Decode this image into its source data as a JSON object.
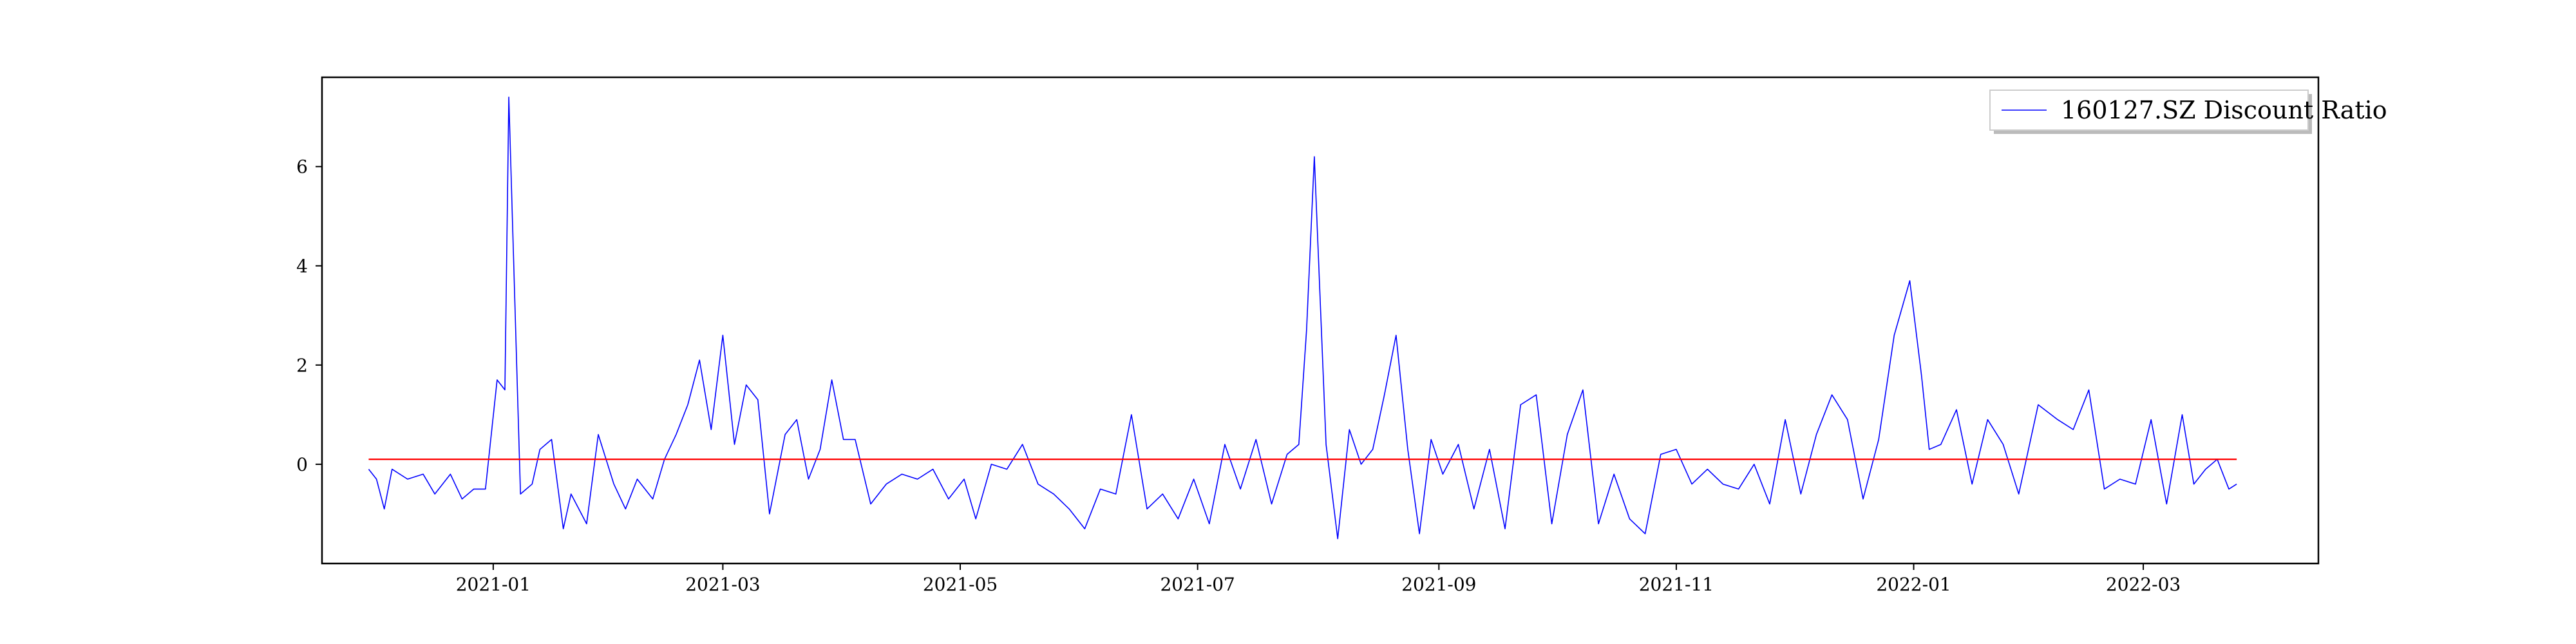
{
  "chart_data": {
    "type": "line",
    "title": "",
    "xlabel": "",
    "ylabel": "",
    "x_ticks": [
      "2021-01",
      "2021-03",
      "2021-05",
      "2021-07",
      "2021-09",
      "2021-11",
      "2022-01",
      "2022-03"
    ],
    "y_ticks": [
      0,
      2,
      4,
      6
    ],
    "xlim": [
      "2020-11-18",
      "2022-04-15"
    ],
    "ylim": [
      -2.0,
      7.8
    ],
    "grid": false,
    "legend": {
      "location": "upper right",
      "entries": [
        "160127.SZ Discount Ratio"
      ]
    },
    "series": [
      {
        "name": "160127.SZ Discount Ratio",
        "color": "#0000ff",
        "x": [
          "2020-11-30",
          "2020-12-02",
          "2020-12-04",
          "2020-12-06",
          "2020-12-10",
          "2020-12-14",
          "2020-12-17",
          "2020-12-21",
          "2020-12-24",
          "2020-12-27",
          "2020-12-30",
          "2021-01-02",
          "2021-01-04",
          "2021-01-05",
          "2021-01-08",
          "2021-01-11",
          "2021-01-13",
          "2021-01-16",
          "2021-01-19",
          "2021-01-21",
          "2021-01-25",
          "2021-01-28",
          "2021-02-01",
          "2021-02-04",
          "2021-02-07",
          "2021-02-11",
          "2021-02-14",
          "2021-02-17",
          "2021-02-20",
          "2021-02-23",
          "2021-02-26",
          "2021-03-01",
          "2021-03-04",
          "2021-03-07",
          "2021-03-10",
          "2021-03-13",
          "2021-03-17",
          "2021-03-20",
          "2021-03-23",
          "2021-03-26",
          "2021-03-29",
          "2021-04-01",
          "2021-04-04",
          "2021-04-08",
          "2021-04-12",
          "2021-04-16",
          "2021-04-20",
          "2021-04-24",
          "2021-04-28",
          "2021-05-02",
          "2021-05-05",
          "2021-05-09",
          "2021-05-13",
          "2021-05-17",
          "2021-05-21",
          "2021-05-25",
          "2021-05-29",
          "2021-06-02",
          "2021-06-06",
          "2021-06-10",
          "2021-06-14",
          "2021-06-18",
          "2021-06-22",
          "2021-06-26",
          "2021-06-30",
          "2021-07-04",
          "2021-07-08",
          "2021-07-12",
          "2021-07-16",
          "2021-07-20",
          "2021-07-24",
          "2021-07-27",
          "2021-07-29",
          "2021-07-31",
          "2021-08-03",
          "2021-08-06",
          "2021-08-09",
          "2021-08-12",
          "2021-08-15",
          "2021-08-18",
          "2021-08-21",
          "2021-08-24",
          "2021-08-27",
          "2021-08-30",
          "2021-09-02",
          "2021-09-06",
          "2021-09-10",
          "2021-09-14",
          "2021-09-18",
          "2021-09-22",
          "2021-09-26",
          "2021-09-30",
          "2021-10-04",
          "2021-10-08",
          "2021-10-12",
          "2021-10-16",
          "2021-10-20",
          "2021-10-24",
          "2021-10-28",
          "2021-11-01",
          "2021-11-05",
          "2021-11-09",
          "2021-11-13",
          "2021-11-17",
          "2021-11-21",
          "2021-11-25",
          "2021-11-29",
          "2021-12-03",
          "2021-12-07",
          "2021-12-11",
          "2021-12-15",
          "2021-12-19",
          "2021-12-23",
          "2021-12-27",
          "2021-12-31",
          "2022-01-03",
          "2022-01-05",
          "2022-01-08",
          "2022-01-12",
          "2022-01-16",
          "2022-01-20",
          "2022-01-24",
          "2022-01-28",
          "2022-02-02",
          "2022-02-07",
          "2022-02-11",
          "2022-02-15",
          "2022-02-19",
          "2022-02-23",
          "2022-02-27",
          "2022-03-03",
          "2022-03-07",
          "2022-03-11",
          "2022-03-14",
          "2022-03-17",
          "2022-03-20",
          "2022-03-23",
          "2022-03-25"
        ],
        "values": [
          -0.1,
          -0.3,
          -0.9,
          -0.1,
          -0.3,
          -0.2,
          -0.6,
          -0.2,
          -0.7,
          -0.5,
          -0.5,
          1.7,
          1.5,
          7.4,
          -0.6,
          -0.4,
          0.3,
          0.5,
          -1.3,
          -0.6,
          -1.2,
          0.6,
          -0.4,
          -0.9,
          -0.3,
          -0.7,
          0.1,
          0.6,
          1.2,
          2.1,
          0.7,
          2.6,
          0.4,
          1.6,
          1.3,
          -1.0,
          0.6,
          0.9,
          -0.3,
          0.3,
          1.7,
          0.5,
          0.5,
          -0.8,
          -0.4,
          -0.2,
          -0.3,
          -0.1,
          -0.7,
          -0.3,
          -1.1,
          0.0,
          -0.1,
          0.4,
          -0.4,
          -0.6,
          -0.9,
          -1.3,
          -0.5,
          -0.6,
          1.0,
          -0.9,
          -0.6,
          -1.1,
          -0.3,
          -1.2,
          0.4,
          -0.5,
          0.5,
          -0.8,
          0.2,
          0.4,
          2.7,
          6.2,
          0.4,
          -1.5,
          0.7,
          0.0,
          0.3,
          1.4,
          2.6,
          0.3,
          -1.4,
          0.5,
          -0.2,
          0.4,
          -0.9,
          0.3,
          -1.3,
          1.2,
          1.4,
          -1.2,
          0.6,
          1.5,
          -1.2,
          -0.2,
          -1.1,
          -1.4,
          0.2,
          0.3,
          -0.4,
          -0.1,
          -0.4,
          -0.5,
          0.0,
          -0.8,
          0.9,
          -0.6,
          0.6,
          1.4,
          0.9,
          -0.7,
          0.5,
          2.6,
          3.7,
          1.8,
          0.3,
          0.4,
          1.1,
          -0.4,
          0.9,
          0.4,
          -0.6,
          1.2,
          0.9,
          0.7,
          1.5,
          -0.5,
          -0.3,
          -0.4,
          0.9,
          -0.8,
          1.0,
          -0.4,
          -0.1,
          0.1,
          -0.5,
          -0.4
        ]
      },
      {
        "name": "",
        "color": "#ff0000",
        "x": [
          "2020-11-30",
          "2022-03-25"
        ],
        "values": [
          0.1,
          0.1
        ]
      }
    ]
  }
}
